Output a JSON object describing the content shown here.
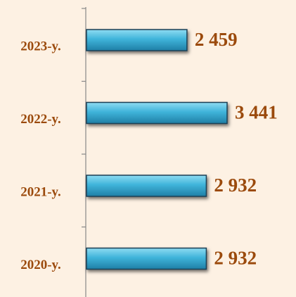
{
  "chart_data": {
    "type": "bar",
    "orientation": "horizontal",
    "categories": [
      "2023-y.",
      "2022-y.",
      "2021-y.",
      "2020-y."
    ],
    "values": [
      2459,
      3441,
      2932,
      2932
    ],
    "value_labels": [
      "2 459",
      "3 441",
      "2 932",
      "2 932"
    ],
    "color": "#3aafd6",
    "label_color": "#9b4a0c"
  }
}
